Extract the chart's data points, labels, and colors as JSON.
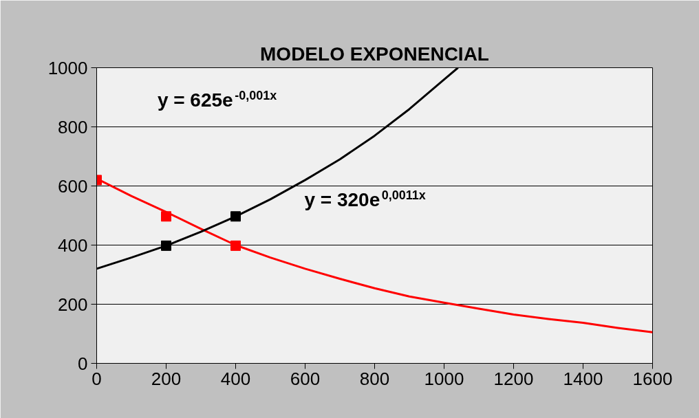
{
  "chart_data": {
    "type": "line",
    "title": "MODELO EXPONENCIAL",
    "xlim": [
      0,
      1600
    ],
    "ylim": [
      0,
      1000
    ],
    "xticks": [
      0,
      200,
      400,
      600,
      800,
      1000,
      1200,
      1400,
      1600
    ],
    "yticks": [
      0,
      200,
      400,
      600,
      800,
      1000
    ],
    "grid": "y",
    "marker": "square",
    "annotations": [
      "y = 625e$^{-0,001x}$",
      "y = 320e$^{0,0011x}$"
    ],
    "series": [
      {
        "type": "scatter",
        "color": "#ff0000",
        "x": [
          0,
          200,
          400
        ],
        "values": [
          620,
          497,
          398
        ]
      },
      {
        "type": "scatter",
        "color": "#000000",
        "x": [
          200,
          400
        ],
        "values": [
          398,
          497
        ]
      },
      {
        "marker": "none",
        "color": "#ff0000",
        "x": [
          0,
          100,
          200,
          300,
          400,
          500,
          600,
          700,
          800,
          900,
          1000,
          1100,
          1200,
          1300,
          1400,
          1500,
          1600
        ],
        "values": [
          625,
          566,
          512,
          455,
          400,
          358,
          320,
          286,
          254,
          226,
          205,
          185,
          165,
          150,
          137,
          120,
          105
        ]
      },
      {
        "marker": "none",
        "color": "#000000",
        "x": [
          0,
          100,
          200,
          300,
          400,
          500,
          600,
          700,
          800,
          900,
          1000,
          1040
        ],
        "values": [
          320,
          358,
          398,
          445,
          497,
          555,
          620,
          690,
          770,
          860,
          960,
          1000
        ]
      }
    ]
  }
}
